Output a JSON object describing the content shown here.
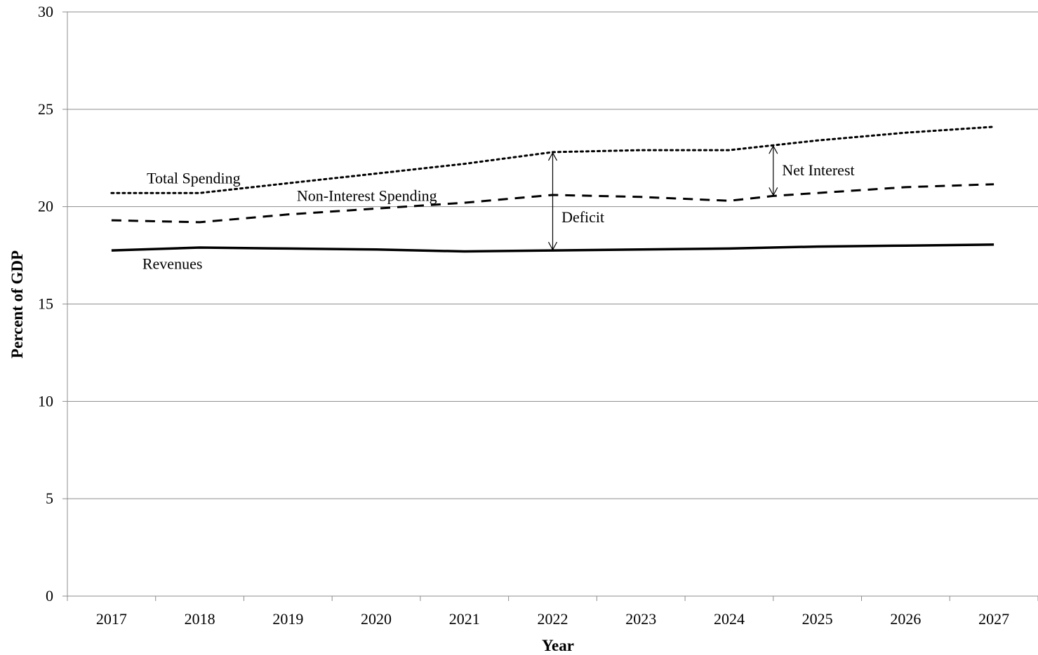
{
  "chart_data": {
    "type": "line",
    "title": "",
    "xlabel": "Year",
    "ylabel": "Percent of GDP",
    "categories": [
      "2017",
      "2018",
      "2019",
      "2020",
      "2021",
      "2022",
      "2023",
      "2024",
      "2025",
      "2026",
      "2027"
    ],
    "ylim": [
      0,
      30
    ],
    "yticks": [
      0,
      5,
      10,
      15,
      20,
      25,
      30
    ],
    "grid": "horizontal",
    "legend": "none",
    "series": [
      {
        "name": "Total Spending",
        "style": "dotted",
        "color": "#000000",
        "x": [
          2017,
          2018,
          2019,
          2020,
          2021,
          2022,
          2023,
          2024,
          2024.5,
          2025,
          2026,
          2027
        ],
        "values": [
          20.7,
          20.7,
          21.2,
          21.7,
          22.2,
          22.8,
          22.9,
          22.9,
          23.15,
          23.4,
          23.8,
          24.1
        ]
      },
      {
        "name": "Non-Interest Spending",
        "style": "dashed",
        "color": "#000000",
        "x": [
          2017,
          2018,
          2019,
          2020,
          2021,
          2022,
          2023,
          2024,
          2024.5,
          2025,
          2026,
          2027
        ],
        "values": [
          19.3,
          19.2,
          19.6,
          19.9,
          20.2,
          20.6,
          20.5,
          20.3,
          20.55,
          20.7,
          21.0,
          21.15
        ]
      },
      {
        "name": "Revenues",
        "style": "solid",
        "color": "#000000",
        "x": [
          2017,
          2018,
          2019,
          2020,
          2021,
          2022,
          2023,
          2024,
          2025,
          2026,
          2027
        ],
        "values": [
          17.75,
          17.9,
          17.85,
          17.8,
          17.7,
          17.75,
          17.8,
          17.85,
          17.95,
          18.0,
          18.05
        ]
      }
    ],
    "annotations": [
      {
        "text": "Total Spending",
        "x": 2017.4,
        "y": 21.2
      },
      {
        "text": "Non-Interest Spending",
        "x": 2019.1,
        "y": 20.3
      },
      {
        "text": "Revenues",
        "x": 2017.35,
        "y": 16.8
      },
      {
        "text": "Deficit",
        "x": 2022.1,
        "y": 19.2
      },
      {
        "text": "Net Interest",
        "x": 2024.6,
        "y": 21.6
      }
    ],
    "arrows": [
      {
        "label": "Deficit",
        "x": 2022,
        "y_from": 17.75,
        "y_to": 22.8
      },
      {
        "label": "Net Interest",
        "x": 2024.5,
        "y_from": 20.55,
        "y_to": 23.15
      }
    ]
  }
}
